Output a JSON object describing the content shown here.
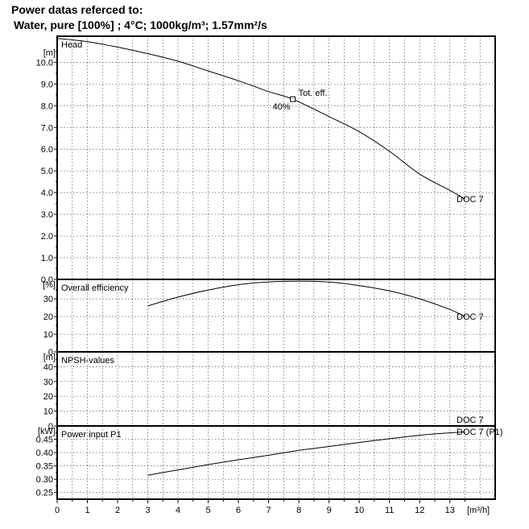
{
  "header": {
    "line1": "Power datas referced to:",
    "line2": "Water, pure [100%] ; 4°C; 1000kg/m³; 1.57mm²/s"
  },
  "chart_data": {
    "type": "line",
    "x_unit_label": "[m³/h]",
    "x_ticks": [
      "0",
      "1",
      "2",
      "3",
      "4",
      "5",
      "6",
      "7",
      "8",
      "9",
      "10",
      "11",
      "12",
      "13"
    ],
    "xlim": [
      0,
      14.5
    ],
    "panels": [
      {
        "id": "head",
        "title": "Head",
        "unit_label": "[m]",
        "ylim": [
          0,
          11.2
        ],
        "y_ticks": [
          "0.0",
          "1.0",
          "2.0",
          "3.0",
          "4.0",
          "5.0",
          "6.0",
          "7.0",
          "8.0",
          "9.0",
          "10.0"
        ],
        "series": [
          {
            "name": "DOC 7",
            "x": [
              0,
              1,
              2,
              3,
              4,
              5,
              6,
              7,
              7.8,
              9,
              10,
              11,
              12,
              13,
              13.5
            ],
            "y": [
              11.1,
              10.95,
              10.7,
              10.4,
              10.05,
              9.6,
              9.15,
              8.65,
              8.3,
              7.5,
              6.8,
              5.9,
              4.85,
              4.1,
              3.7
            ]
          }
        ],
        "marker": {
          "x": 7.8,
          "y": 8.3,
          "label": "Tot. eff.",
          "value_label": "40%"
        }
      },
      {
        "id": "efficiency",
        "title": "Overall efficiency",
        "unit_label": "[%]",
        "ylim": [
          0,
          41
        ],
        "y_ticks": [
          "0",
          "10",
          "20",
          "30"
        ],
        "series": [
          {
            "name": "DOC 7",
            "x": [
              3,
              4,
              5,
              6,
              7,
              8,
              9,
              10,
              11,
              12,
              13,
              13.5
            ],
            "y": [
              26,
              31,
              35,
              38,
              39.6,
              40,
              39.5,
              37.5,
              34.5,
              30,
              24,
              20
            ]
          }
        ]
      },
      {
        "id": "npsh",
        "title": "NPSH-values",
        "unit_label": "[m]",
        "ylim": [
          0,
          50
        ],
        "y_ticks": [
          "0",
          "10",
          "20",
          "30",
          "40"
        ],
        "series": [
          {
            "name": "DOC 7",
            "x": [],
            "y": []
          }
        ]
      },
      {
        "id": "power",
        "title": "Power input P1",
        "unit_label": "[kW]",
        "ylim": [
          0.225,
          0.5
        ],
        "y_ticks": [
          "0.25",
          "0.30",
          "0.35",
          "0.40",
          "0.45"
        ],
        "series": [
          {
            "name": "DOC 7 (P1)",
            "x": [
              3,
              4,
              5,
              6,
              7,
              8,
              9,
              10,
              11,
              12,
              13,
              13.5
            ],
            "y": [
              0.315,
              0.335,
              0.355,
              0.373,
              0.39,
              0.408,
              0.423,
              0.438,
              0.452,
              0.465,
              0.474,
              0.478
            ]
          }
        ]
      }
    ]
  }
}
